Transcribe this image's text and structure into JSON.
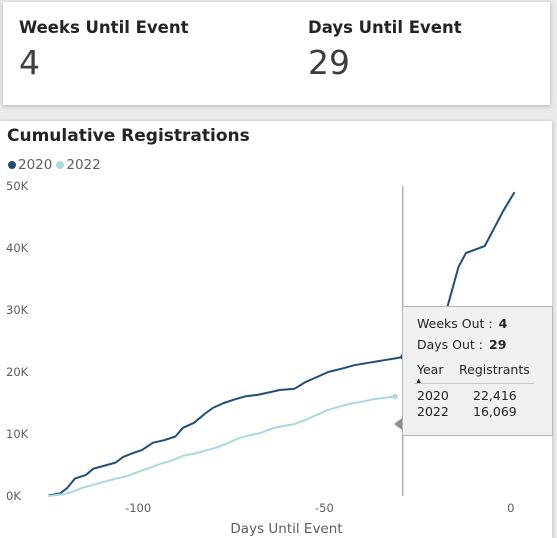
{
  "kpis": [
    {
      "label": "Weeks Until Event",
      "value": "4"
    },
    {
      "label": "Days Until Event",
      "value": "29"
    }
  ],
  "chart_title": "Cumulative Registrations",
  "colors": {
    "series_2020": "#1f4e79",
    "series_2022": "#a8dadf",
    "reference_line": "#b0b0b0"
  },
  "chart_data": {
    "type": "line",
    "title": "Cumulative Registrations",
    "xlabel": "Days Until Event",
    "ylabel": "",
    "xlim": [
      -125,
      10
    ],
    "ylim": [
      0,
      50000
    ],
    "x_ticks": [
      -100,
      -50,
      0
    ],
    "x_tick_labels": [
      "-100",
      "-50",
      "0"
    ],
    "y_ticks": [
      0,
      10000,
      20000,
      30000,
      40000,
      50000
    ],
    "y_tick_labels": [
      "0K",
      "10K",
      "20K",
      "30K",
      "40K",
      "50K"
    ],
    "grid": false,
    "legend_position": "top-left",
    "reference_line_x": -29,
    "series": [
      {
        "name": "2020",
        "color": "#1f4e79",
        "points": [
          [
            -124,
            100
          ],
          [
            -121,
            400
          ],
          [
            -119,
            1300
          ],
          [
            -117,
            2800
          ],
          [
            -114,
            3400
          ],
          [
            -112,
            4400
          ],
          [
            -109,
            4900
          ],
          [
            -106,
            5400
          ],
          [
            -104,
            6300
          ],
          [
            -101,
            7000
          ],
          [
            -99,
            7400
          ],
          [
            -96,
            8600
          ],
          [
            -93,
            9000
          ],
          [
            -90,
            9600
          ],
          [
            -88,
            11000
          ],
          [
            -85,
            11800
          ],
          [
            -82,
            13300
          ],
          [
            -80,
            14200
          ],
          [
            -77,
            15000
          ],
          [
            -74,
            15600
          ],
          [
            -71,
            16100
          ],
          [
            -68,
            16300
          ],
          [
            -65,
            16700
          ],
          [
            -62,
            17100
          ],
          [
            -58,
            17300
          ],
          [
            -55,
            18400
          ],
          [
            -52,
            19200
          ],
          [
            -49,
            20000
          ],
          [
            -45,
            20600
          ],
          [
            -42,
            21100
          ],
          [
            -38,
            21500
          ],
          [
            -34,
            21900
          ],
          [
            -31,
            22200
          ],
          [
            -29,
            22416
          ],
          [
            -26,
            22800
          ],
          [
            -23,
            23700
          ],
          [
            -21,
            25200
          ],
          [
            -19,
            27400
          ],
          [
            -17,
            30500
          ],
          [
            -14,
            37000
          ],
          [
            -12,
            39200
          ],
          [
            -7,
            40300
          ],
          [
            -2,
            46000
          ],
          [
            1,
            49000
          ]
        ]
      },
      {
        "name": "2022",
        "color": "#a8dadf",
        "points": [
          [
            -124,
            0
          ],
          [
            -120,
            300
          ],
          [
            -118,
            600
          ],
          [
            -115,
            1300
          ],
          [
            -112,
            1800
          ],
          [
            -109,
            2300
          ],
          [
            -106,
            2800
          ],
          [
            -103,
            3200
          ],
          [
            -100,
            3900
          ],
          [
            -97,
            4500
          ],
          [
            -94,
            5200
          ],
          [
            -91,
            5700
          ],
          [
            -88,
            6500
          ],
          [
            -85,
            6800
          ],
          [
            -82,
            7300
          ],
          [
            -79,
            7800
          ],
          [
            -76,
            8500
          ],
          [
            -73,
            9300
          ],
          [
            -70,
            9800
          ],
          [
            -67,
            10200
          ],
          [
            -64,
            10900
          ],
          [
            -61,
            11300
          ],
          [
            -58,
            11600
          ],
          [
            -55,
            12300
          ],
          [
            -52,
            13100
          ],
          [
            -49,
            13900
          ],
          [
            -46,
            14400
          ],
          [
            -43,
            14900
          ],
          [
            -40,
            15200
          ],
          [
            -37,
            15600
          ],
          [
            -33,
            15900
          ],
          [
            -31,
            16069
          ]
        ]
      }
    ]
  },
  "tooltip": {
    "weeks_label": "Weeks Out :",
    "weeks_value": "4",
    "days_label": "Days Out :",
    "days_value": "29",
    "col_year": "Year",
    "col_registrants": "Registrants",
    "rows": [
      {
        "year": "2020",
        "registrants": "22,416"
      },
      {
        "year": "2022",
        "registrants": "16,069"
      }
    ]
  }
}
